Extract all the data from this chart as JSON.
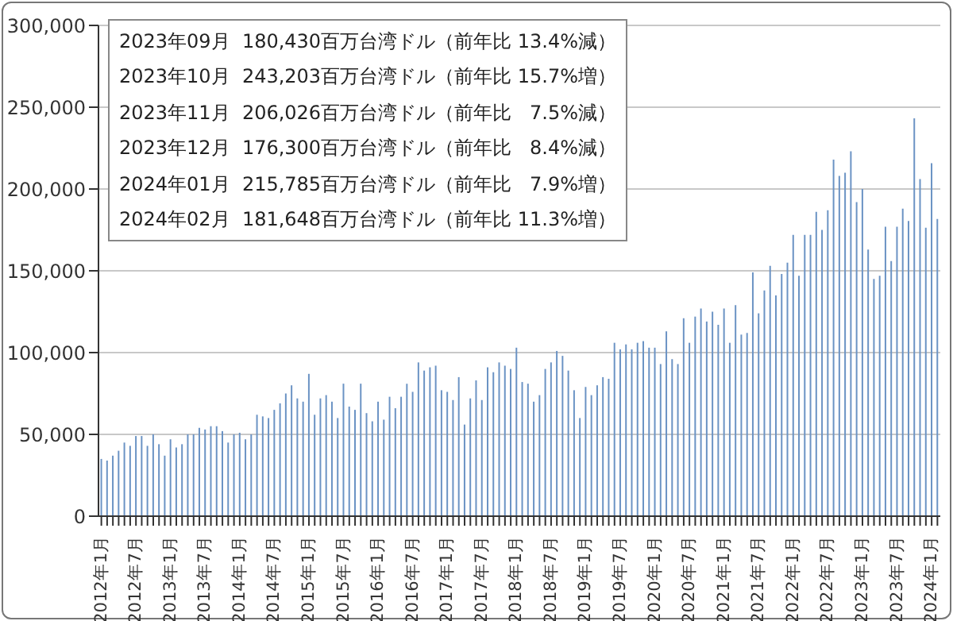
{
  "chart_data": {
    "type": "bar",
    "categories": [
      "2012年1月",
      null,
      null,
      null,
      null,
      null,
      "2012年7月",
      null,
      null,
      null,
      null,
      null,
      "2013年1月",
      null,
      null,
      null,
      null,
      null,
      "2013年7月",
      null,
      null,
      null,
      null,
      null,
      "2014年1月",
      null,
      null,
      null,
      null,
      null,
      "2014年7月",
      null,
      null,
      null,
      null,
      null,
      "2015年1月",
      null,
      null,
      null,
      null,
      null,
      "2015年7月",
      null,
      null,
      null,
      null,
      null,
      "2016年1月",
      null,
      null,
      null,
      null,
      null,
      "2016年7月",
      null,
      null,
      null,
      null,
      null,
      "2017年1月",
      null,
      null,
      null,
      null,
      null,
      "2017年7月",
      null,
      null,
      null,
      null,
      null,
      "2018年1月",
      null,
      null,
      null,
      null,
      null,
      "2018年7月",
      null,
      null,
      null,
      null,
      null,
      "2019年1月",
      null,
      null,
      null,
      null,
      null,
      "2019年7月",
      null,
      null,
      null,
      null,
      null,
      "2020年1月",
      null,
      null,
      null,
      null,
      null,
      "2020年7月",
      null,
      null,
      null,
      null,
      null,
      "2021年1月",
      null,
      null,
      null,
      null,
      null,
      "2021年7月",
      null,
      null,
      null,
      null,
      null,
      "2022年1月",
      null,
      null,
      null,
      null,
      null,
      "2022年7月",
      null,
      null,
      null,
      null,
      null,
      "2023年1月",
      null,
      null,
      null,
      null,
      null,
      "2023年7月",
      null,
      null,
      null,
      null,
      null,
      "2024年1月",
      null
    ],
    "values": [
      35000,
      34000,
      37000,
      40000,
      45000,
      43000,
      49000,
      49000,
      43000,
      50000,
      44000,
      37000,
      47000,
      42000,
      44000,
      50000,
      50000,
      54000,
      53000,
      55000,
      55000,
      52000,
      45000,
      50000,
      51000,
      47000,
      50000,
      62000,
      61000,
      60000,
      65000,
      69000,
      75000,
      80000,
      72000,
      70000,
      87000,
      62000,
      72000,
      74000,
      70000,
      60000,
      81000,
      67000,
      65000,
      81000,
      63000,
      58000,
      70000,
      59000,
      73000,
      66000,
      73000,
      81000,
      76000,
      94000,
      89000,
      91000,
      92000,
      77000,
      76000,
      71000,
      85000,
      56000,
      72000,
      83000,
      71000,
      91000,
      88000,
      94000,
      92000,
      90000,
      103000,
      82000,
      81000,
      70000,
      74000,
      90000,
      94000,
      101000,
      98000,
      89000,
      77000,
      60000,
      79000,
      74000,
      80000,
      85000,
      84000,
      106000,
      102000,
      105000,
      102000,
      106000,
      107000,
      103000,
      103000,
      93000,
      113000,
      96000,
      93000,
      121000,
      106000,
      122000,
      127000,
      119000,
      125000,
      117000,
      127000,
      106000,
      129000,
      111000,
      112000,
      149000,
      124000,
      138000,
      153000,
      135000,
      148000,
      155000,
      172000,
      147000,
      172000,
      172000,
      186000,
      175000,
      187000,
      218000,
      208000,
      210000,
      223000,
      192000,
      200000,
      163000,
      145000,
      147000,
      177000,
      156000,
      177000,
      188000,
      180430,
      243203,
      206026,
      176300,
      215785,
      181648
    ],
    "color": "#6b93c4",
    "ylim": [
      0,
      300000
    ],
    "yticks": [
      0,
      {
        "value": 50000,
        "label": "50,000"
      },
      {
        "value": 100000,
        "label": "100,000"
      },
      {
        "value": 150000,
        "label": "150,000"
      },
      {
        "value": 200000,
        "label": "200,000"
      },
      {
        "value": 250000,
        "label": "250,000"
      },
      {
        "value": 300000,
        "label": "300,000"
      }
    ],
    "grid": "y",
    "annotations": [
      "2023年09月  180,430百万台湾ドル（前年比 13.4%減）",
      "2023年10月  243,203百万台湾ドル（前年比 15.7%増）",
      "2023年11月  206,026百万台湾ドル（前年比   7.5%減）",
      "2023年12月  176,300百万台湾ドル（前年比   8.4%減）",
      "2024年01月  215,785百万台湾ドル（前年比   7.9%増）",
      "2024年02月  181,648百万台湾ドル（前年比 11.3%増）"
    ]
  }
}
